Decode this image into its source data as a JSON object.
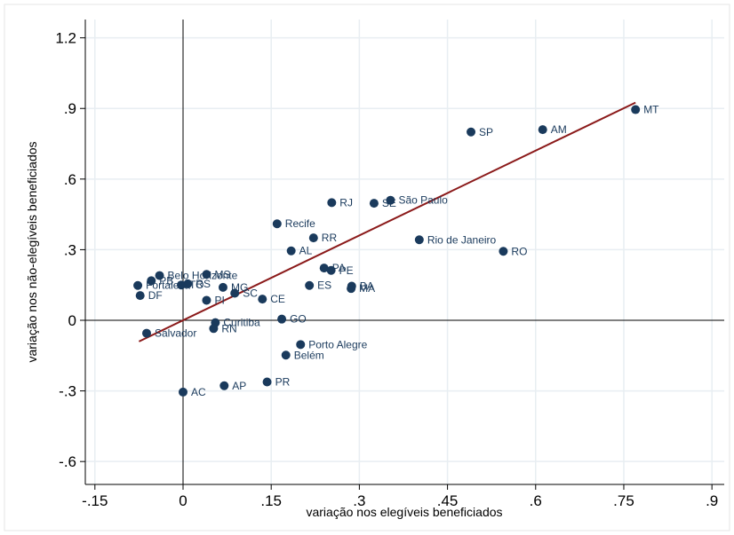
{
  "chart_data": {
    "type": "scatter",
    "title": "",
    "xlabel": "variação nos elegíveis beneficiados",
    "ylabel": "variação nos não-elegíveis beneficiados",
    "xlim": [
      -0.15,
      0.9
    ],
    "ylim": [
      -0.6,
      1.2
    ],
    "x_ticks": [
      -0.15,
      0,
      0.15,
      0.3,
      0.45,
      0.6,
      0.75,
      0.9
    ],
    "x_tick_labels": [
      "-.15",
      "0",
      ".15",
      ".3",
      ".45",
      ".6",
      ".75",
      ".9"
    ],
    "y_ticks": [
      -0.6,
      -0.3,
      0,
      0.3,
      0.6,
      0.9,
      1.2
    ],
    "y_tick_labels": [
      "-.6",
      "-.3",
      "0",
      ".3",
      ".6",
      ".9",
      "1.2"
    ],
    "grid": "vertical and horizontal gridlines at ticks",
    "reference_lines": {
      "x": 0,
      "y": 0
    },
    "fit_line": {
      "x": [
        -0.075,
        0.77
      ],
      "y": [
        -0.09,
        0.925
      ],
      "color": "#8b1a1a"
    },
    "marker_color": "#1a3a5c",
    "points": [
      {
        "label": "MT",
        "x": 0.77,
        "y": 0.895
      },
      {
        "label": "AM",
        "x": 0.612,
        "y": 0.81
      },
      {
        "label": "SP",
        "x": 0.49,
        "y": 0.8
      },
      {
        "label": "SE",
        "x": 0.325,
        "y": 0.497
      },
      {
        "label": "São Paulo",
        "x": 0.353,
        "y": 0.51
      },
      {
        "label": "RJ",
        "x": 0.253,
        "y": 0.5
      },
      {
        "label": "Recife",
        "x": 0.16,
        "y": 0.41
      },
      {
        "label": "RR",
        "x": 0.222,
        "y": 0.35
      },
      {
        "label": "Rio de Janeiro",
        "x": 0.402,
        "y": 0.342
      },
      {
        "label": "RO",
        "x": 0.545,
        "y": 0.293
      },
      {
        "label": "AL",
        "x": 0.184,
        "y": 0.295
      },
      {
        "label": "PA",
        "x": 0.24,
        "y": 0.222
      },
      {
        "label": "PE",
        "x": 0.252,
        "y": 0.212
      },
      {
        "label": "ES",
        "x": 0.215,
        "y": 0.148
      },
      {
        "label": "BA",
        "x": 0.287,
        "y": 0.145
      },
      {
        "label": "MA",
        "x": 0.286,
        "y": 0.135
      },
      {
        "label": "CE",
        "x": 0.135,
        "y": 0.09
      },
      {
        "label": "SC",
        "x": 0.088,
        "y": 0.115
      },
      {
        "label": "MG",
        "x": 0.068,
        "y": 0.14
      },
      {
        "label": "MS",
        "x": 0.04,
        "y": 0.195
      },
      {
        "label": "Belo Horizonte",
        "x": -0.04,
        "y": 0.19
      },
      {
        "label": "PB",
        "x": -0.054,
        "y": 0.168
      },
      {
        "label": "Fortaleza",
        "x": -0.077,
        "y": 0.148
      },
      {
        "label": "TO",
        "x": -0.003,
        "y": 0.15
      },
      {
        "label": "RS",
        "x": 0.008,
        "y": 0.155
      },
      {
        "label": "DF",
        "x": -0.073,
        "y": 0.105
      },
      {
        "label": "PI",
        "x": 0.04,
        "y": 0.085
      },
      {
        "label": "GO",
        "x": 0.168,
        "y": 0.005
      },
      {
        "label": "Curitiba",
        "x": 0.055,
        "y": -0.01
      },
      {
        "label": "RN",
        "x": 0.052,
        "y": -0.035
      },
      {
        "label": "Salvador",
        "x": -0.062,
        "y": -0.055
      },
      {
        "label": "Porto Alegre",
        "x": 0.2,
        "y": -0.103
      },
      {
        "label": "Belém",
        "x": 0.175,
        "y": -0.148
      },
      {
        "label": "PR",
        "x": 0.143,
        "y": -0.262
      },
      {
        "label": "AP",
        "x": 0.07,
        "y": -0.278
      },
      {
        "label": "AC",
        "x": 0.0,
        "y": -0.305
      }
    ]
  }
}
